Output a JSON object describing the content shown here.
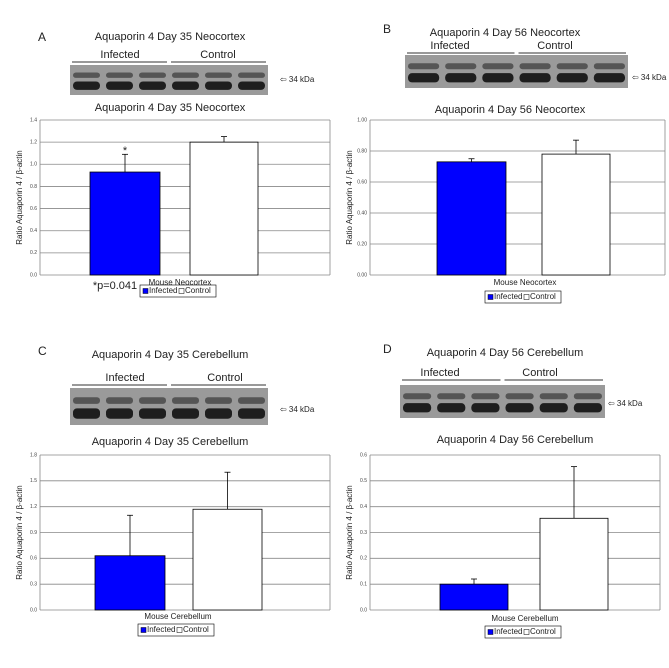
{
  "chart_data": [
    {
      "type": "bar",
      "panel": "A",
      "blot_title": "Aquaporin 4 Day 35 Neocortex",
      "blot_groups": [
        "Infected",
        "Control"
      ],
      "blot_marker": "⇦ 34 kDa",
      "title": "Aquaporin 4 Day 35 Neocortex",
      "y_label": "Ratio Aquaporin 4 / β-actin",
      "x_label": "Mouse Neocortex",
      "series": [
        {
          "name": "Infected",
          "color": "#0000ff",
          "values": [
            0.93
          ],
          "errors": [
            0.16
          ]
        },
        {
          "name": "Control",
          "color": "#ffffff",
          "values": [
            1.2
          ],
          "errors": [
            0.05
          ]
        }
      ],
      "annotations": [
        "*",
        "*p=0.041"
      ],
      "ylim": [
        0,
        1.4
      ],
      "yticks": [
        {
          "value": 0,
          "label": "0.0"
        },
        0.2,
        0.4,
        0.6,
        0.8,
        {
          "value": 1,
          "label": "1.0"
        },
        1.2,
        1.4
      ],
      "grid": true
    },
    {
      "type": "bar",
      "panel": "B",
      "blot_title": "Aquaporin 4 Day 56 Neocortex",
      "blot_groups": [
        "Infected",
        "Control"
      ],
      "blot_marker": "⇦ 34 kDa",
      "title": "Aquaporin 4 Day 56 Neocortex",
      "y_label": "Ratio Aquaporin 4 / β-actin",
      "x_label": "Mouse Neocortex",
      "series": [
        {
          "name": "Infected",
          "color": "#0000ff",
          "values": [
            0.73
          ],
          "errors": [
            0.02
          ]
        },
        {
          "name": "Control",
          "color": "#ffffff",
          "values": [
            0.78
          ],
          "errors": [
            0.09
          ]
        }
      ],
      "ylim": [
        0,
        1
      ],
      "yticks": [
        {
          "value": 0,
          "label": "0.00"
        },
        {
          "value": 0.2,
          "label": "0.20"
        },
        {
          "value": 0.4,
          "label": "0.40"
        },
        {
          "value": 0.6,
          "label": "0.60"
        },
        {
          "value": 0.8,
          "label": "0.80"
        },
        {
          "value": 1,
          "label": "1.00"
        }
      ],
      "grid": true
    },
    {
      "type": "bar",
      "panel": "C",
      "blot_title": "Aquaporin 4 Day 35 Cerebellum",
      "blot_groups": [
        "Infected",
        "Control"
      ],
      "blot_marker": "⇦ 34 kDa",
      "title": "Aquaporin 4 Day 35 Cerebellum",
      "y_label": "Ratio Aquaporin 4 / β-actin",
      "x_label": "Mouse Cerebellum",
      "series": [
        {
          "name": "Infected",
          "color": "#0000ff",
          "values": [
            0.63
          ],
          "errors": [
            0.47
          ]
        },
        {
          "name": "Control",
          "color": "#ffffff",
          "values": [
            1.17
          ],
          "errors": [
            0.43
          ]
        }
      ],
      "ylim": [
        0,
        1.8
      ],
      "yticks": [
        {
          "value": 0,
          "label": "0.0"
        },
        0.3,
        0.6,
        0.9,
        1.2,
        1.5,
        1.8
      ],
      "grid": true
    },
    {
      "type": "bar",
      "panel": "D",
      "blot_title": "Aquaporin 4 Day 56 Cerebellum",
      "blot_groups": [
        "Infected",
        "Control"
      ],
      "blot_marker": "⇦ 34 kDa",
      "title": "Aquaporin 4 Day 56 Cerebellum",
      "y_label": "Ratio Aquaporin 4 / β-actin",
      "x_label": "Mouse Cerebellum",
      "series": [
        {
          "name": "Infected",
          "color": "#0000ff",
          "values": [
            0.1
          ],
          "errors": [
            0.02
          ]
        },
        {
          "name": "Control",
          "color": "#ffffff",
          "values": [
            0.355
          ],
          "errors": [
            0.2
          ]
        }
      ],
      "ylim": [
        0,
        0.6
      ],
      "yticks": [
        {
          "value": 0,
          "label": "0.0"
        },
        0.1,
        0.2,
        0.3,
        0.4,
        0.5,
        0.6
      ],
      "grid": true
    }
  ]
}
